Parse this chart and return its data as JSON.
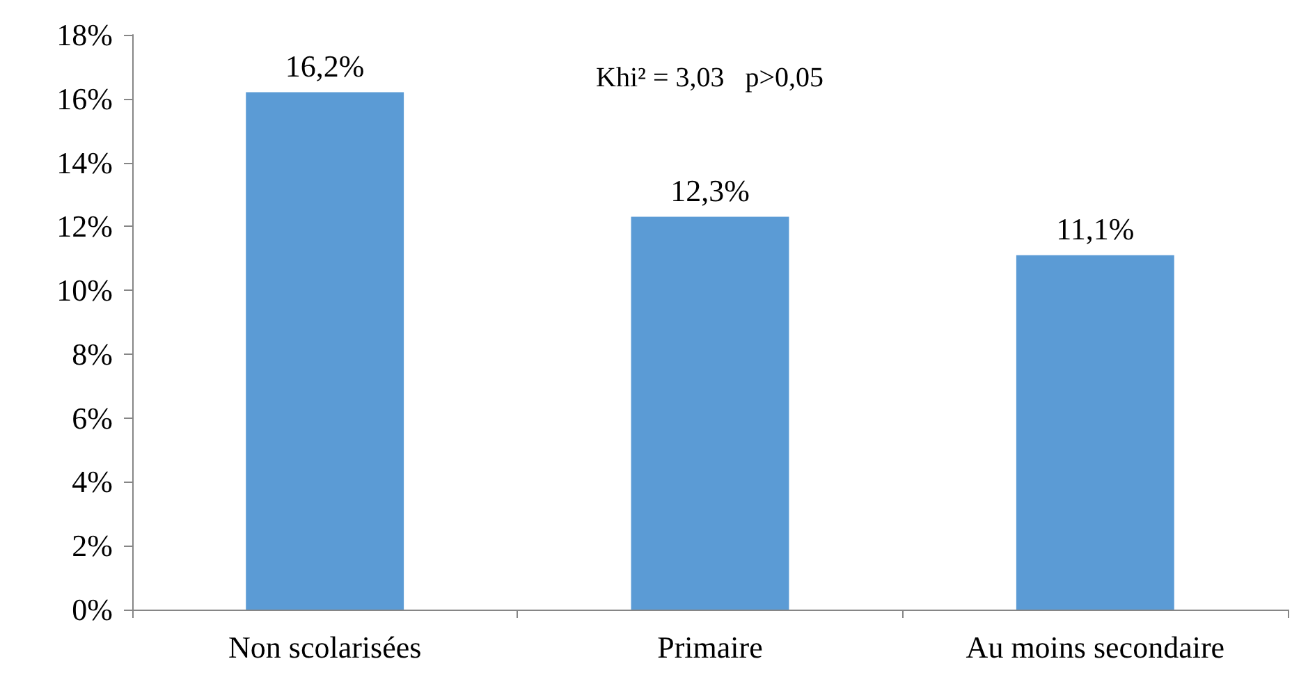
{
  "chart_data": {
    "type": "bar",
    "categories": [
      "Non scolarisées",
      "Primaire",
      "Au moins secondaire"
    ],
    "values": [
      16.2,
      12.3,
      11.1
    ],
    "color": "#5b9bd5",
    "value_labels": [
      "16,2%",
      "12,3%",
      "11,1%"
    ],
    "ylim": [
      0,
      18
    ],
    "yticks": [
      {
        "value": 0,
        "label": "0%"
      },
      {
        "value": 2,
        "label": "2%"
      },
      {
        "value": 4,
        "label": "4%"
      },
      {
        "value": 6,
        "label": "6%"
      },
      {
        "value": 8,
        "label": "8%"
      },
      {
        "value": 10,
        "label": "10%"
      },
      {
        "value": 12,
        "label": "12%"
      },
      {
        "value": 14,
        "label": "14%"
      },
      {
        "value": 16,
        "label": "16%"
      },
      {
        "value": 18,
        "label": "18%"
      }
    ],
    "grid": false,
    "annotations": [
      "Khi² = 3,03   p>0,05"
    ]
  }
}
